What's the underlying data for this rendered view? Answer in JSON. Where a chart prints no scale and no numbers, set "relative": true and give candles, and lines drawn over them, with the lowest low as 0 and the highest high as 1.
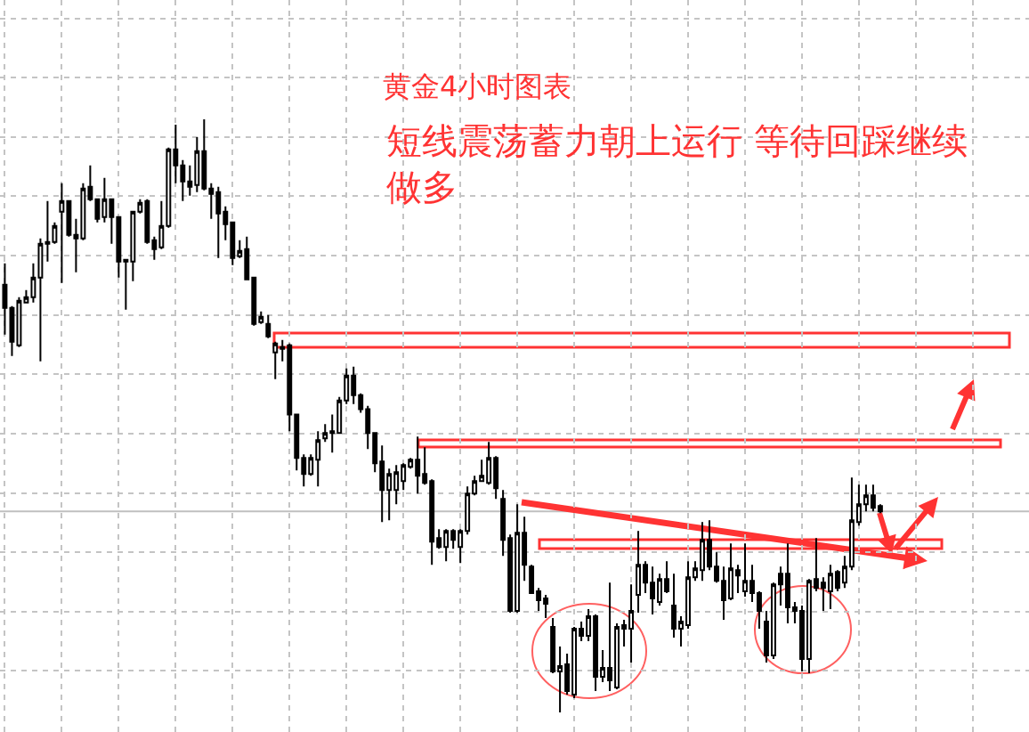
{
  "chart_data": {
    "type": "candlestick",
    "title": "黄金4小时图表",
    "annotations": [
      "短线震荡蓄力朝上运行 等待回踩继续做多"
    ],
    "categories": [
      null,
      null,
      null,
      null,
      null,
      null,
      null,
      null,
      null,
      null,
      null,
      null,
      null,
      null,
      null,
      null,
      null,
      null,
      null,
      null,
      null,
      null,
      null,
      null,
      null,
      null,
      null,
      null,
      null,
      null,
      null,
      null,
      null,
      null,
      null,
      null,
      null,
      null,
      null,
      null,
      null,
      null,
      null,
      null,
      null,
      null,
      null,
      null,
      null,
      null,
      null,
      null,
      null,
      null,
      null,
      null,
      null,
      null,
      null,
      null,
      null,
      null,
      null,
      null,
      null,
      null,
      null,
      null,
      null,
      null,
      null,
      null,
      null,
      null,
      null,
      null,
      null,
      null,
      null,
      null,
      null,
      null,
      null,
      null,
      null,
      null,
      null,
      null,
      null,
      null,
      null,
      null,
      null,
      null,
      null,
      null,
      null,
      null,
      null,
      null,
      null,
      null,
      null,
      null,
      null,
      null,
      null,
      null,
      null,
      null,
      null,
      null,
      null,
      null,
      null,
      null,
      null,
      null,
      null,
      null,
      null,
      null,
      null,
      null
    ],
    "ohlc": [
      [
        0.721,
        0.757,
        0.637,
        0.682
      ],
      [
        0.682,
        0.685,
        0.601,
        0.625
      ],
      [
        0.619,
        0.7,
        0.616,
        0.694
      ],
      [
        0.691,
        0.712,
        0.691,
        0.7
      ],
      [
        0.7,
        0.757,
        0.691,
        0.733
      ],
      [
        0.733,
        0.799,
        0.592,
        0.79
      ],
      [
        0.793,
        0.862,
        0.76,
        0.79
      ],
      [
        0.793,
        0.826,
        0.79,
        0.82
      ],
      [
        0.844,
        0.892,
        0.724,
        0.862
      ],
      [
        0.862,
        0.862,
        0.802,
        0.805
      ],
      [
        0.805,
        0.832,
        0.742,
        0.799
      ],
      [
        0.799,
        0.892,
        0.796,
        0.883
      ],
      [
        0.886,
        0.922,
        0.862,
        0.865
      ],
      [
        0.865,
        0.865,
        0.826,
        0.832
      ],
      [
        0.835,
        0.901,
        0.826,
        0.865
      ],
      [
        0.865,
        0.865,
        0.79,
        0.835
      ],
      [
        0.835,
        0.835,
        0.733,
        0.76
      ],
      [
        0.76,
        0.763,
        0.679,
        0.763
      ],
      [
        0.76,
        0.844,
        0.727,
        0.844
      ],
      [
        0.844,
        0.865,
        0.841,
        0.859
      ],
      [
        0.862,
        0.865,
        0.79,
        0.793
      ],
      [
        0.796,
        0.802,
        0.763,
        0.781
      ],
      [
        0.784,
        0.862,
        0.781,
        0.82
      ],
      [
        0.82,
        0.952,
        0.817,
        0.949
      ],
      [
        0.949,
        0.991,
        0.892,
        0.922
      ],
      [
        0.922,
        0.931,
        0.862,
        0.895
      ],
      [
        0.895,
        0.922,
        0.871,
        0.886
      ],
      [
        0.889,
        0.97,
        0.877,
        0.946
      ],
      [
        0.946,
        1.0,
        0.88,
        0.883
      ],
      [
        0.883,
        0.892,
        0.832,
        0.874
      ],
      [
        0.877,
        0.886,
        0.766,
        0.841
      ],
      [
        0.844,
        0.853,
        0.796,
        0.823
      ],
      [
        0.826,
        0.826,
        0.754,
        0.766
      ],
      [
        0.769,
        0.796,
        0.766,
        0.778
      ],
      [
        0.781,
        0.802,
        0.73,
        0.73
      ],
      [
        0.733,
        0.733,
        0.652,
        0.655
      ],
      [
        0.658,
        0.676,
        0.655,
        0.667
      ],
      [
        0.655,
        0.67,
        0.631,
        0.634
      ],
      [
        0.607,
        0.625,
        0.562,
        0.622
      ],
      [
        0.616,
        0.628,
        0.592,
        0.613
      ],
      [
        0.619,
        0.622,
        0.474,
        0.502
      ],
      [
        0.502,
        0.502,
        0.408,
        0.429
      ],
      [
        0.429,
        0.435,
        0.381,
        0.402
      ],
      [
        0.402,
        0.435,
        0.399,
        0.429
      ],
      [
        0.426,
        0.474,
        0.381,
        0.459
      ],
      [
        0.462,
        0.486,
        0.456,
        0.471
      ],
      [
        0.474,
        0.502,
        0.438,
        0.471
      ],
      [
        0.471,
        0.532,
        0.471,
        0.526
      ],
      [
        0.526,
        0.58,
        0.52,
        0.568
      ],
      [
        0.568,
        0.583,
        0.52,
        0.535
      ],
      [
        0.535,
        0.538,
        0.505,
        0.511
      ],
      [
        0.511,
        0.517,
        0.444,
        0.471
      ],
      [
        0.471,
        0.471,
        0.405,
        0.42
      ],
      [
        0.423,
        0.45,
        0.321,
        0.375
      ],
      [
        0.375,
        0.411,
        0.324,
        0.402
      ],
      [
        0.375,
        0.417,
        0.351,
        0.405
      ],
      [
        0.39,
        0.42,
        0.375,
        0.417
      ],
      [
        0.414,
        0.429,
        0.411,
        0.426
      ],
      [
        0.426,
        0.465,
        0.369,
        0.399
      ],
      [
        0.402,
        0.447,
        0.384,
        0.387
      ],
      [
        0.39,
        0.393,
        0.249,
        0.288
      ],
      [
        0.294,
        0.309,
        0.276,
        0.279
      ],
      [
        0.279,
        0.309,
        0.255,
        0.306
      ],
      [
        0.306,
        0.309,
        0.276,
        0.291
      ],
      [
        0.279,
        0.309,
        0.252,
        0.306
      ],
      [
        0.306,
        0.381,
        0.3,
        0.369
      ],
      [
        0.369,
        0.399,
        0.366,
        0.39
      ],
      [
        0.39,
        0.426,
        0.39,
        0.399
      ],
      [
        0.387,
        0.456,
        0.384,
        0.429
      ],
      [
        0.429,
        0.432,
        0.36,
        0.378
      ],
      [
        0.36,
        0.375,
        0.264,
        0.291
      ],
      [
        0.294,
        0.3,
        0.168,
        0.171
      ],
      [
        0.171,
        0.351,
        0.168,
        0.303
      ],
      [
        0.303,
        0.33,
        0.222,
        0.249
      ],
      [
        0.246,
        0.249,
        0.201,
        0.201
      ],
      [
        0.204,
        0.21,
        0.171,
        0.189
      ],
      [
        0.192,
        0.198,
        0.159,
        0.183
      ],
      [
        0.144,
        0.159,
        0.066,
        0.069
      ],
      [
        0.069,
        0.111,
        0.0,
        0.078
      ],
      [
        0.081,
        0.099,
        0.03,
        0.036
      ],
      [
        0.03,
        0.144,
        0.024,
        0.141
      ],
      [
        0.141,
        0.153,
        0.12,
        0.129
      ],
      [
        0.129,
        0.174,
        0.12,
        0.162
      ],
      [
        0.162,
        0.165,
        0.036,
        0.06
      ],
      [
        0.06,
        0.105,
        0.051,
        0.075
      ],
      [
        0.075,
        0.219,
        0.036,
        0.054
      ],
      [
        0.042,
        0.15,
        0.039,
        0.144
      ],
      [
        0.147,
        0.156,
        0.111,
        0.141
      ],
      [
        0.141,
        0.216,
        0.084,
        0.171
      ],
      [
        0.198,
        0.306,
        0.168,
        0.249
      ],
      [
        0.249,
        0.255,
        0.201,
        0.219
      ],
      [
        0.219,
        0.246,
        0.165,
        0.192
      ],
      [
        0.186,
        0.234,
        0.18,
        0.225
      ],
      [
        0.225,
        0.255,
        0.201,
        0.204
      ],
      [
        0.18,
        0.234,
        0.126,
        0.141
      ],
      [
        0.141,
        0.162,
        0.111,
        0.153
      ],
      [
        0.147,
        0.255,
        0.141,
        0.228
      ],
      [
        0.228,
        0.255,
        0.222,
        0.243
      ],
      [
        0.24,
        0.321,
        0.222,
        0.291
      ],
      [
        0.291,
        0.324,
        0.24,
        0.246
      ],
      [
        0.246,
        0.27,
        0.219,
        0.222
      ],
      [
        0.222,
        0.246,
        0.156,
        0.189
      ],
      [
        0.192,
        0.285,
        0.189,
        0.243
      ],
      [
        0.24,
        0.249,
        0.201,
        0.231
      ],
      [
        0.204,
        0.285,
        0.195,
        0.222
      ],
      [
        0.222,
        0.249,
        0.186,
        0.201
      ],
      [
        0.201,
        0.204,
        0.141,
        0.171
      ],
      [
        0.153,
        0.171,
        0.084,
        0.096
      ],
      [
        0.096,
        0.219,
        0.09,
        0.216
      ],
      [
        0.234,
        0.246,
        0.18,
        0.216
      ],
      [
        0.234,
        0.285,
        0.15,
        0.177
      ],
      [
        0.177,
        0.186,
        0.15,
        0.171
      ],
      [
        0.171,
        0.18,
        0.069,
        0.09
      ],
      [
        0.09,
        0.225,
        0.066,
        0.222
      ],
      [
        0.225,
        0.294,
        0.204,
        0.21
      ],
      [
        0.219,
        0.228,
        0.171,
        0.21
      ],
      [
        0.204,
        0.249,
        0.174,
        0.234
      ],
      [
        0.237,
        0.24,
        0.204,
        0.21
      ],
      [
        0.219,
        0.264,
        0.21,
        0.246
      ],
      [
        0.246,
        0.396,
        0.24,
        0.324
      ],
      [
        0.321,
        0.384,
        0.315,
        0.351
      ],
      [
        0.351,
        0.384,
        0.339,
        0.366
      ],
      [
        0.366,
        0.384,
        0.339,
        0.345
      ],
      [
        0.348,
        0.351,
        0.336,
        0.339
      ]
    ],
    "relative": true,
    "color": "#000000",
    "grid": true,
    "ref_lines": [
      {
        "axis": "y",
        "value": 0.339,
        "color": "#c0c0c0"
      }
    ]
  }
}
